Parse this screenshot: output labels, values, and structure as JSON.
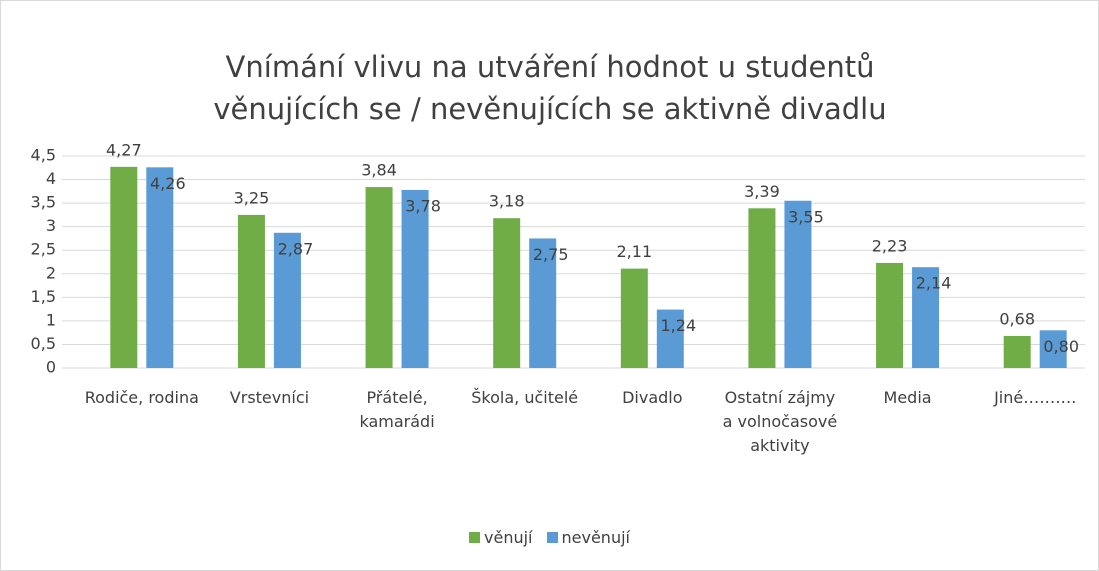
{
  "chart_data": {
    "type": "bar",
    "title": "Vnímání vlivu na utváření hodnot u studentů věnujících se / nevěnujících se aktivně divadlu",
    "categories": [
      "Rodiče, rodina",
      "Vrstevníci",
      "Přátelé, kamarádi",
      "Škola, učitelé",
      "Divadlo",
      "Ostatní zájmy a volnočasové aktivity",
      "Media",
      "Jiné………."
    ],
    "series": [
      {
        "name": "věnují",
        "color": "#70ad47",
        "values": [
          4.27,
          3.25,
          3.84,
          3.18,
          2.11,
          3.39,
          2.23,
          0.68
        ],
        "value_labels": [
          "4,27",
          "3,25",
          "3,84",
          "3,18",
          "2,11",
          "3,39",
          "2,23",
          "0,68"
        ]
      },
      {
        "name": "nevěnují",
        "color": "#5b9bd5",
        "values": [
          4.26,
          2.87,
          3.78,
          2.75,
          1.24,
          3.55,
          2.14,
          0.8
        ],
        "value_labels": [
          "4,26",
          "2,87",
          "3,78",
          "2,75",
          "1,24",
          "3,55",
          "2,14",
          "0,80"
        ]
      }
    ],
    "ylim": [
      0,
      4.5
    ],
    "yticks": [
      0,
      {
        "value": 0.5,
        "label": "0,5"
      },
      1,
      {
        "value": 1.5,
        "label": "1,5"
      },
      2,
      {
        "value": 2.5,
        "label": "2,5"
      },
      3,
      {
        "value": 3.5,
        "label": "3,5"
      },
      4,
      {
        "value": 4.5,
        "label": "4,5"
      }
    ],
    "grid": true,
    "legend": "bottom"
  }
}
